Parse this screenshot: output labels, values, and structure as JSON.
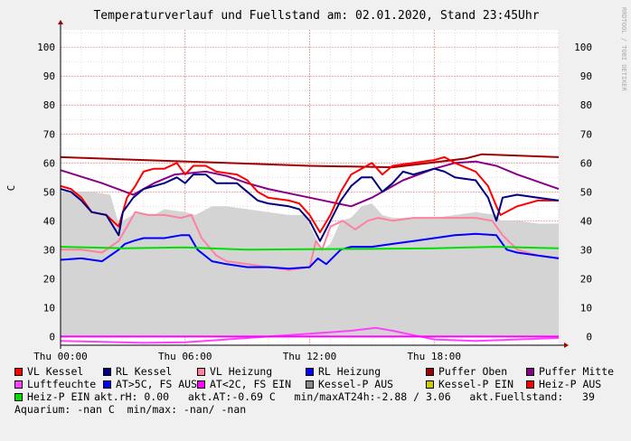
{
  "chart_data": {
    "type": "line",
    "title": "Temperaturverlauf und Fuellstand am: 02.01.2020, Stand 23:45Uhr",
    "ylabel": "C",
    "watermark": "RRDTOOL / TOBI OETIKER",
    "xlim": [
      0,
      24
    ],
    "ylim": [
      -3,
      106
    ],
    "x_ticks": [
      {
        "t": 0,
        "label": "Thu 00:00"
      },
      {
        "t": 6,
        "label": "Thu 06:00"
      },
      {
        "t": 12,
        "label": "Thu 12:00"
      },
      {
        "t": 18,
        "label": "Thu 18:00"
      }
    ],
    "y_ticks": [
      0,
      10,
      20,
      30,
      40,
      50,
      60,
      70,
      80,
      90,
      100
    ],
    "grid": true,
    "series": [
      {
        "name": "Kessel-P AUS",
        "kind": "area",
        "color": "#d4d4d4",
        "points": [
          [
            0,
            50
          ],
          [
            1.5,
            50
          ],
          [
            2.4,
            49
          ],
          [
            2.8,
            39
          ],
          [
            3.2,
            41
          ],
          [
            3.8,
            43
          ],
          [
            4.5,
            42
          ],
          [
            5,
            44
          ],
          [
            6,
            43
          ],
          [
            6.5,
            42
          ],
          [
            7.3,
            45
          ],
          [
            8,
            45
          ],
          [
            9,
            44
          ],
          [
            10,
            43
          ],
          [
            11,
            42
          ],
          [
            11.8,
            42
          ],
          [
            12.1,
            37
          ],
          [
            12.6,
            30
          ],
          [
            13,
            32
          ],
          [
            13.5,
            40
          ],
          [
            14,
            41
          ],
          [
            14.5,
            45
          ],
          [
            15,
            46
          ],
          [
            15.5,
            42
          ],
          [
            16,
            41
          ],
          [
            17,
            41
          ],
          [
            18,
            41
          ],
          [
            19,
            42
          ],
          [
            20,
            43
          ],
          [
            21,
            42
          ],
          [
            21.2,
            40
          ],
          [
            22,
            40
          ],
          [
            23,
            39
          ],
          [
            24,
            39
          ]
        ]
      },
      {
        "name": "Puffer Oben",
        "color": "#a00000",
        "points": [
          [
            0,
            62
          ],
          [
            4,
            61
          ],
          [
            8,
            60
          ],
          [
            12,
            59
          ],
          [
            16,
            58.5
          ],
          [
            19.5,
            61.5
          ],
          [
            20.3,
            63
          ],
          [
            24,
            62
          ]
        ]
      },
      {
        "name": "Puffer Mitte",
        "color": "#880088",
        "points": [
          [
            0,
            57.5
          ],
          [
            2,
            53
          ],
          [
            3.5,
            49
          ],
          [
            4.5,
            53
          ],
          [
            5.5,
            56
          ],
          [
            7,
            57
          ],
          [
            8,
            55.5
          ],
          [
            9,
            53
          ],
          [
            10,
            51
          ],
          [
            12,
            48
          ],
          [
            14,
            45
          ],
          [
            15,
            48
          ],
          [
            16.5,
            54
          ],
          [
            18,
            58
          ],
          [
            19,
            60
          ],
          [
            20,
            60.5
          ],
          [
            21,
            59
          ],
          [
            22,
            56
          ],
          [
            24,
            51
          ]
        ]
      },
      {
        "name": "VL Kessel",
        "color": "#ff0000",
        "points": [
          [
            0,
            52
          ],
          [
            0.5,
            51
          ],
          [
            1,
            48
          ],
          [
            1.5,
            43
          ],
          [
            2.2,
            42
          ],
          [
            2.8,
            38
          ],
          [
            3.2,
            48
          ],
          [
            3.6,
            52
          ],
          [
            4,
            57
          ],
          [
            4.5,
            58
          ],
          [
            5,
            58
          ],
          [
            5.6,
            60
          ],
          [
            6,
            56
          ],
          [
            6.4,
            59
          ],
          [
            7,
            59
          ],
          [
            7.5,
            57
          ],
          [
            8.5,
            56
          ],
          [
            9,
            54
          ],
          [
            9.5,
            50
          ],
          [
            10,
            48
          ],
          [
            11,
            47
          ],
          [
            11.5,
            46
          ],
          [
            12,
            42
          ],
          [
            12.5,
            36
          ],
          [
            13,
            42
          ],
          [
            13.5,
            50
          ],
          [
            14,
            56
          ],
          [
            14.5,
            58
          ],
          [
            15,
            60
          ],
          [
            15.5,
            56
          ],
          [
            16,
            59
          ],
          [
            17,
            60
          ],
          [
            18,
            61
          ],
          [
            18.5,
            62
          ],
          [
            19,
            60
          ],
          [
            20,
            57
          ],
          [
            20.6,
            52
          ],
          [
            21,
            45
          ],
          [
            21.2,
            42
          ],
          [
            22,
            45
          ],
          [
            23,
            47
          ],
          [
            24,
            47
          ]
        ]
      },
      {
        "name": "RL Kessel",
        "color": "#000080",
        "points": [
          [
            0,
            51
          ],
          [
            0.5,
            50
          ],
          [
            1,
            47
          ],
          [
            1.5,
            43
          ],
          [
            2.2,
            42
          ],
          [
            2.8,
            35
          ],
          [
            3,
            43
          ],
          [
            3.5,
            48
          ],
          [
            4,
            51
          ],
          [
            5,
            53
          ],
          [
            5.6,
            55
          ],
          [
            6,
            53
          ],
          [
            6.4,
            56
          ],
          [
            7,
            56
          ],
          [
            7.5,
            53
          ],
          [
            8.5,
            53
          ],
          [
            9,
            50
          ],
          [
            9.5,
            47
          ],
          [
            10,
            46
          ],
          [
            11,
            45
          ],
          [
            11.5,
            44
          ],
          [
            12,
            40
          ],
          [
            12.5,
            33
          ],
          [
            13,
            40
          ],
          [
            13.5,
            47
          ],
          [
            14,
            52
          ],
          [
            14.5,
            55
          ],
          [
            15,
            55
          ],
          [
            15.5,
            50
          ],
          [
            16,
            53
          ],
          [
            16.5,
            57
          ],
          [
            17,
            56
          ],
          [
            18,
            58
          ],
          [
            18.5,
            57
          ],
          [
            19,
            55
          ],
          [
            20,
            54
          ],
          [
            20.6,
            48
          ],
          [
            21,
            40
          ],
          [
            21.3,
            48
          ],
          [
            22,
            49
          ],
          [
            23,
            48
          ],
          [
            24,
            47
          ]
        ]
      },
      {
        "name": "VL Heizung",
        "color": "#ff80a0",
        "points": [
          [
            0,
            30
          ],
          [
            1,
            30
          ],
          [
            2,
            29
          ],
          [
            2.8,
            33
          ],
          [
            3.2,
            38
          ],
          [
            3.6,
            43
          ],
          [
            4.2,
            42
          ],
          [
            5,
            42
          ],
          [
            5.8,
            41
          ],
          [
            6.3,
            42
          ],
          [
            6.8,
            34
          ],
          [
            7.5,
            28
          ],
          [
            8,
            26
          ],
          [
            9,
            25
          ],
          [
            10,
            24
          ],
          [
            11,
            23
          ],
          [
            12,
            24
          ],
          [
            12.3,
            33
          ],
          [
            12.6,
            30
          ],
          [
            13,
            38
          ],
          [
            13.6,
            40
          ],
          [
            14.2,
            37
          ],
          [
            14.8,
            40
          ],
          [
            15.3,
            41
          ],
          [
            16,
            40
          ],
          [
            17,
            41
          ],
          [
            18,
            41
          ],
          [
            19,
            41
          ],
          [
            20,
            41
          ],
          [
            20.8,
            40
          ],
          [
            21.3,
            35
          ],
          [
            22,
            30
          ],
          [
            23,
            28
          ],
          [
            24,
            27
          ]
        ]
      },
      {
        "name": "RL Heizung",
        "color": "#0000ff",
        "points": [
          [
            0,
            26.5
          ],
          [
            1,
            27
          ],
          [
            2,
            26
          ],
          [
            2.8,
            30
          ],
          [
            3.1,
            32
          ],
          [
            3.5,
            33
          ],
          [
            4,
            34
          ],
          [
            5,
            34
          ],
          [
            5.8,
            35
          ],
          [
            6.2,
            35
          ],
          [
            6.6,
            30
          ],
          [
            7.3,
            26
          ],
          [
            8,
            25
          ],
          [
            9,
            24
          ],
          [
            10,
            24
          ],
          [
            11,
            23.5
          ],
          [
            12,
            24
          ],
          [
            12.4,
            27
          ],
          [
            12.8,
            25
          ],
          [
            13.5,
            30
          ],
          [
            14,
            31
          ],
          [
            15,
            31
          ],
          [
            16,
            32
          ],
          [
            17,
            33
          ],
          [
            18,
            34
          ],
          [
            19,
            35
          ],
          [
            20,
            35.5
          ],
          [
            21,
            35
          ],
          [
            21.5,
            30
          ],
          [
            22,
            29
          ],
          [
            23,
            28
          ],
          [
            24,
            27
          ]
        ]
      },
      {
        "name": "Luftfeuchte",
        "color": "#ff40ff",
        "points": [
          [
            0,
            -1.5
          ],
          [
            2,
            -1.8
          ],
          [
            4,
            -2.2
          ],
          [
            6,
            -2
          ],
          [
            8,
            -1
          ],
          [
            10,
            0
          ],
          [
            12,
            1
          ],
          [
            14,
            2
          ],
          [
            15.2,
            3
          ],
          [
            16,
            2
          ],
          [
            17,
            0.5
          ],
          [
            18,
            -1
          ],
          [
            20,
            -1.5
          ],
          [
            22,
            -1
          ],
          [
            24,
            -0.5
          ]
        ]
      },
      {
        "name": "AT<2C, FS EIN",
        "color": "#ff00ff",
        "points": [
          [
            0,
            0
          ],
          [
            24,
            0
          ]
        ]
      },
      {
        "name": "Heiz-P EIN",
        "color": "#00e000",
        "points": [
          [
            0,
            31
          ],
          [
            3,
            30.5
          ],
          [
            6,
            30.8
          ],
          [
            9,
            30
          ],
          [
            12,
            30.2
          ],
          [
            15,
            30.3
          ],
          [
            18,
            30.5
          ],
          [
            21,
            31
          ],
          [
            24,
            30.5
          ]
        ]
      }
    ]
  },
  "legend": {
    "row1": [
      {
        "label": "VL Kessel",
        "color": "#ff0000"
      },
      {
        "label": "RL Kessel",
        "color": "#000080"
      },
      {
        "label": "VL Heizung",
        "color": "#ff80a0"
      },
      {
        "label": "RL Heizung",
        "color": "#0000ff"
      },
      {
        "label": "Puffer Oben",
        "color": "#a00000"
      },
      {
        "label": "Puffer Mitte",
        "color": "#880088"
      }
    ],
    "row2": [
      {
        "label": "Luftfeuchte",
        "color": "#ff40ff"
      },
      {
        "label": "AT>5C, FS AUS",
        "color": "#0000ff"
      },
      {
        "label": "AT<2C, FS EIN",
        "color": "#ff00ff"
      },
      {
        "label": "Kessel-P AUS",
        "color": "#888888"
      },
      {
        "label": "Kessel-P EIN",
        "color": "#cccc00"
      },
      {
        "label": "Heiz-P AUS",
        "color": "#ff0000"
      }
    ],
    "row3_item": {
      "label": "Heiz-P EIN",
      "color": "#00e000"
    },
    "row3_status": "akt.rH: 0.00   akt.AT:-0.69 C   min/maxAT24h:-2.88 / 3.06   akt.Fuellstand:   39",
    "row4_status": "Aquarium: -nan C  min/max: -nan/ -nan"
  }
}
